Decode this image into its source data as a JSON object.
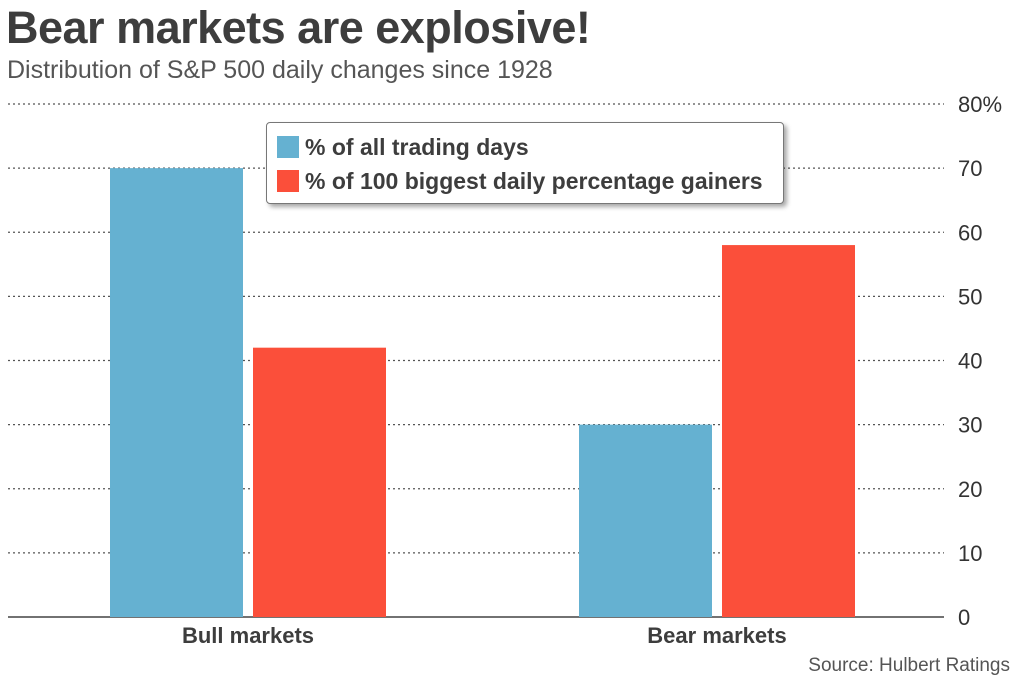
{
  "title": "Bear markets are explosive!",
  "subtitle": "Distribution of S&P 500 daily changes since 1928",
  "source": "Source: Hulbert Ratings",
  "colors": {
    "series1": "#65b1d1",
    "series2": "#fb4f3a",
    "grid": "#555555",
    "text": "#333333"
  },
  "chart_data": {
    "type": "bar",
    "categories": [
      "Bull markets",
      "Bear markets"
    ],
    "series": [
      {
        "name": "% of all trading days",
        "values": [
          70,
          30
        ]
      },
      {
        "name": "% of 100 biggest daily percentage gainers",
        "values": [
          42,
          58
        ]
      }
    ],
    "ylim": [
      0,
      80
    ],
    "yticks": [
      "0",
      "10",
      "20",
      "30",
      "40",
      "50",
      "60",
      "70",
      "80%"
    ],
    "grid": true,
    "legend_position": "top-center",
    "ylabel": "",
    "xlabel": ""
  }
}
